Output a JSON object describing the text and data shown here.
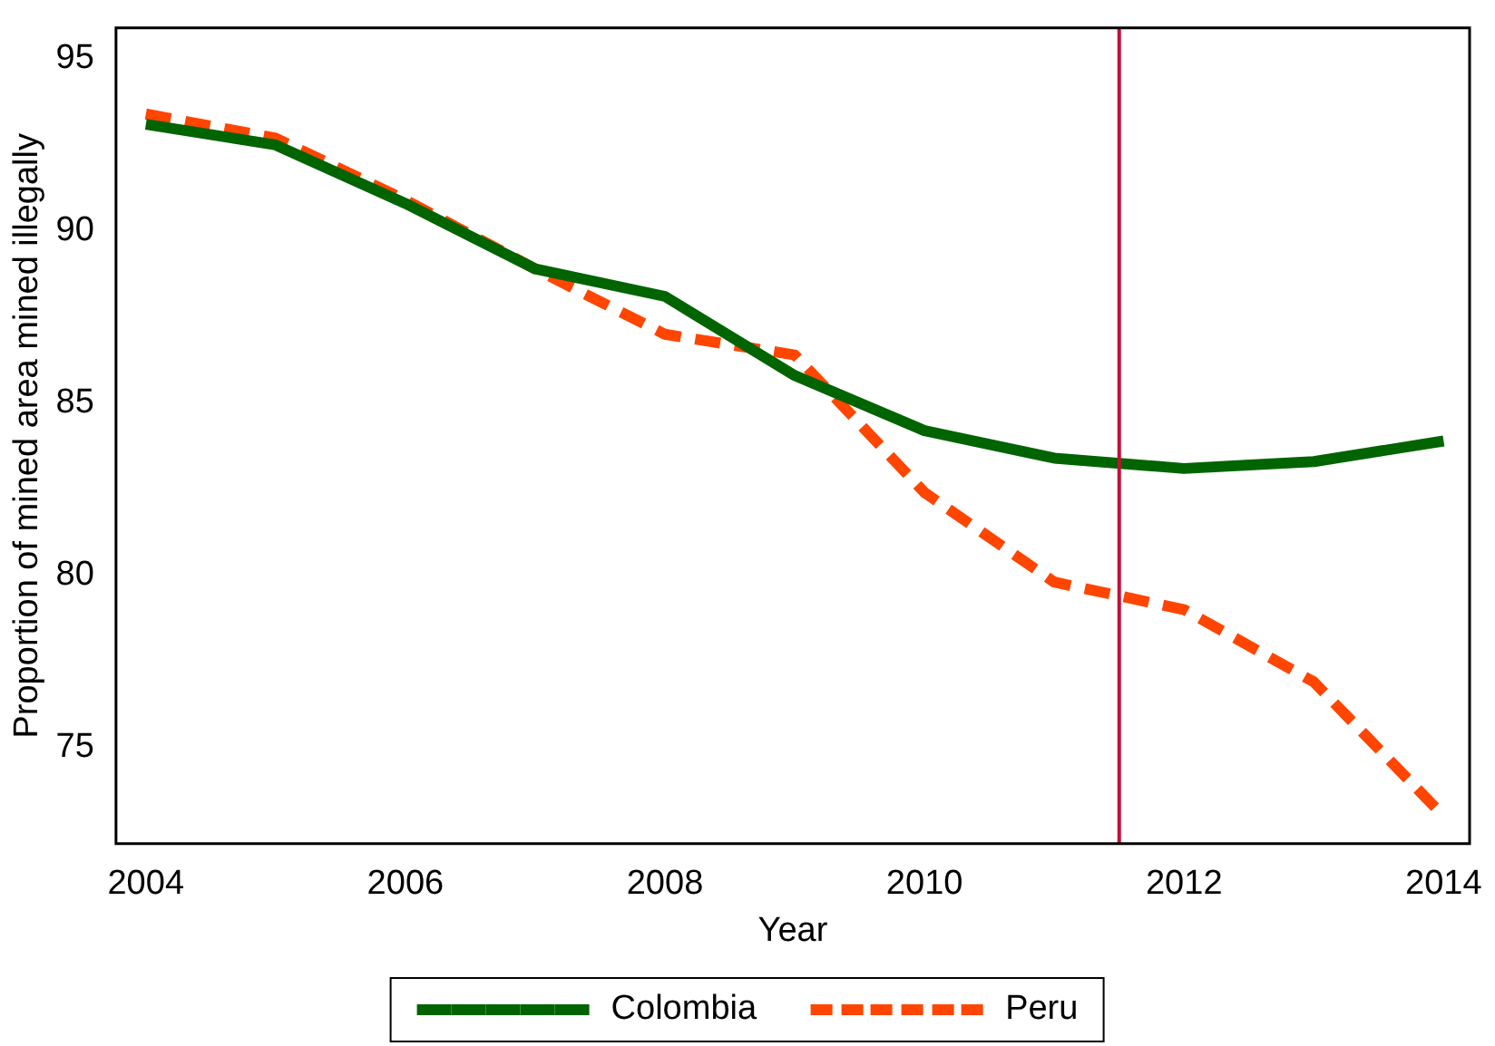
{
  "chart_data": {
    "type": "line",
    "xlabel": "Year",
    "ylabel": "Proportion of mined area mined illegally",
    "x": [
      2004,
      2005,
      2006,
      2007,
      2008,
      2009,
      2010,
      2011,
      2012,
      2013,
      2014
    ],
    "series": [
      {
        "name": "Colombia",
        "color": "#006400",
        "line_style": "solid",
        "values": [
          93.1,
          92.5,
          90.8,
          88.9,
          88.1,
          85.8,
          84.2,
          83.4,
          83.1,
          83.3,
          83.9
        ]
      },
      {
        "name": "Peru",
        "color": "#ff4500",
        "line_style": "dashed",
        "values": [
          93.4,
          92.7,
          90.9,
          88.9,
          87.0,
          86.4,
          82.4,
          79.8,
          79.0,
          76.9,
          73.0
        ]
      }
    ],
    "xlim": [
      2003.77,
      2014.2
    ],
    "xticks": [
      2004,
      2006,
      2008,
      2010,
      2012,
      2014
    ],
    "ylim": [
      72.2,
      95.9
    ],
    "yticks": [
      75,
      80,
      85,
      90,
      95
    ],
    "ref_lines": [
      {
        "axis": "x",
        "value": 2011.5,
        "color": "#c0103c"
      }
    ],
    "grid": false,
    "legend": "bottom",
    "marker": "none"
  }
}
